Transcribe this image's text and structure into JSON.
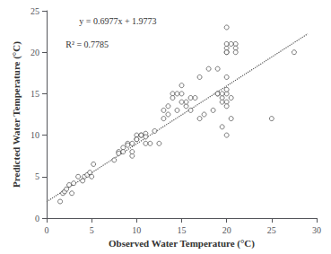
{
  "chart_data": {
    "type": "scatter",
    "xlabel": "Observed Water Temperature (°C)",
    "ylabel": "Predicted Water Temperature (°C)",
    "annotations": [
      "y = 0.6977x + 1.9773",
      "R² = 0.7785"
    ],
    "xlim": [
      0,
      30
    ],
    "ylim": [
      0,
      25
    ],
    "xticks": [
      0,
      5,
      10,
      15,
      20,
      25,
      30
    ],
    "yticks": [
      0,
      5,
      10,
      15,
      20,
      25
    ],
    "grid": false,
    "series": [
      {
        "type": "scatter",
        "color": "#333333",
        "marker": "open circle",
        "x": [
          1.5,
          1.8,
          2.0,
          2.2,
          2.5,
          2.8,
          3.0,
          3.5,
          4.0,
          4.2,
          4.5,
          4.8,
          5.0,
          5.2,
          7.5,
          8.0,
          8.5,
          9.0,
          9.5,
          10.0,
          10.0,
          10.5,
          11.0,
          11.0,
          11.5,
          12.0,
          12.5,
          13.0,
          13.5,
          14.0,
          14.0,
          14.5,
          15.0,
          15.0,
          15.5,
          15.5,
          16.0,
          16.0,
          16.5,
          17.0,
          17.0,
          17.5,
          18.0,
          18.5,
          19.0,
          19.5,
          19.5,
          20.0,
          20.0,
          20.0,
          20.0,
          20.0,
          20.0,
          20.0,
          20.5,
          20.5,
          21.0,
          21.0,
          19.0,
          19.0,
          20.0,
          20.5,
          21.0,
          20.0,
          20.0,
          19.5,
          20.0,
          25.0,
          27.5,
          19.5,
          9.5,
          8.0,
          8.5,
          9.0,
          9.5,
          10.0,
          10.5,
          11.0,
          13.0,
          13.5,
          14.5,
          15.0
        ],
        "values": [
          2.0,
          3.0,
          3.2,
          3.5,
          4.0,
          3.0,
          4.2,
          5.0,
          4.5,
          5.0,
          5.2,
          5.5,
          5.0,
          6.5,
          7.0,
          8.0,
          8.5,
          9.0,
          9.0,
          10.0,
          9.5,
          10.0,
          10.2,
          9.8,
          9.0,
          10.5,
          9.0,
          13.0,
          13.5,
          15.0,
          14.5,
          15.0,
          15.0,
          16.0,
          13.5,
          14.0,
          14.5,
          13.0,
          14.5,
          17.0,
          12.0,
          12.5,
          18.0,
          13.0,
          15.0,
          14.5,
          14.0,
          14.0,
          15.0,
          20.0,
          20.5,
          21.0,
          20.0,
          15.5,
          14.5,
          12.0,
          21.0,
          20.5,
          15.0,
          18.0,
          17.0,
          21.0,
          20.0,
          10.0,
          13.5,
          15.0,
          23.0,
          12.0,
          20.0,
          11.0,
          7.5,
          7.8,
          8.0,
          8.8,
          8.0,
          9.5,
          10.0,
          9.0,
          12.0,
          12.5,
          13.0,
          14.0
        ]
      },
      {
        "type": "line",
        "color": "#555555",
        "line_style": "dotted",
        "x": [
          0,
          29
        ],
        "values": [
          1.9773,
          22.2106
        ]
      }
    ]
  }
}
